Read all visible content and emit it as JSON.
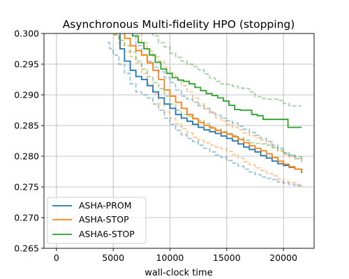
{
  "chart_data": {
    "type": "line",
    "title": "Asynchronous Multi-fidelity HPO (stopping)",
    "xlabel": "wall-clock time",
    "ylabel": "",
    "xlim": [
      -1100,
      22700
    ],
    "ylim": [
      0.265,
      0.3
    ],
    "xticks": [
      0,
      5000,
      10000,
      15000,
      20000
    ],
    "yticks": [
      0.265,
      0.27,
      0.275,
      0.28,
      0.285,
      0.29,
      0.295,
      0.3
    ],
    "xtick_labels": [
      "0",
      "5000",
      "10000",
      "15000",
      "20000"
    ],
    "ytick_labels": [
      "0.265",
      "0.270",
      "0.275",
      "0.280",
      "0.285",
      "0.290",
      "0.295",
      "0.300"
    ],
    "grid": true,
    "legend_position": "lower-left",
    "series": [
      {
        "name": "ASHA-PROM",
        "color": "#1f77b4",
        "mean": [
          [
            5200,
            0.3005
          ],
          [
            5600,
            0.2975
          ],
          [
            6000,
            0.2955
          ],
          [
            6500,
            0.294
          ],
          [
            7000,
            0.293
          ],
          [
            7500,
            0.2925
          ],
          [
            8000,
            0.2915
          ],
          [
            8500,
            0.2905
          ],
          [
            9000,
            0.2895
          ],
          [
            9500,
            0.2885
          ],
          [
            10000,
            0.2878
          ],
          [
            10500,
            0.2868
          ],
          [
            11000,
            0.2862
          ],
          [
            11500,
            0.2857
          ],
          [
            12000,
            0.2852
          ],
          [
            12500,
            0.2847
          ],
          [
            13000,
            0.2843
          ],
          [
            13500,
            0.284
          ],
          [
            14000,
            0.2837
          ],
          [
            14500,
            0.2833
          ],
          [
            15000,
            0.2829
          ],
          [
            15500,
            0.2825
          ],
          [
            16000,
            0.282
          ],
          [
            16500,
            0.2815
          ],
          [
            17000,
            0.2811
          ],
          [
            17500,
            0.2807
          ],
          [
            18000,
            0.2801
          ],
          [
            18500,
            0.2797
          ],
          [
            19000,
            0.2792
          ],
          [
            19500,
            0.2788
          ],
          [
            20000,
            0.2785
          ],
          [
            20500,
            0.2782
          ],
          [
            21000,
            0.2779
          ],
          [
            21600,
            0.2773
          ]
        ],
        "upper": [
          [
            6300,
            0.3005
          ],
          [
            7000,
            0.298
          ],
          [
            7500,
            0.2965
          ],
          [
            8000,
            0.2955
          ],
          [
            8500,
            0.2945
          ],
          [
            9000,
            0.2938
          ],
          [
            9500,
            0.2928
          ],
          [
            10000,
            0.292
          ],
          [
            10500,
            0.2908
          ],
          [
            11000,
            0.2898
          ],
          [
            11500,
            0.2893
          ],
          [
            12000,
            0.2888
          ],
          [
            12500,
            0.2882
          ],
          [
            13000,
            0.2878
          ],
          [
            13500,
            0.2872
          ],
          [
            14000,
            0.2867
          ],
          [
            14500,
            0.2862
          ],
          [
            15000,
            0.2858
          ],
          [
            15500,
            0.2854
          ],
          [
            16000,
            0.2849
          ],
          [
            16500,
            0.2844
          ],
          [
            17000,
            0.2839
          ],
          [
            17500,
            0.2834
          ],
          [
            18000,
            0.2829
          ],
          [
            18500,
            0.2824
          ],
          [
            19000,
            0.2818
          ],
          [
            19500,
            0.2813
          ],
          [
            20000,
            0.2806
          ],
          [
            20500,
            0.2801
          ],
          [
            21000,
            0.2796
          ],
          [
            21600,
            0.2788
          ]
        ],
        "lower": [
          [
            4500,
            0.2985
          ],
          [
            4700,
            0.2975
          ],
          [
            5000,
            0.2965
          ],
          [
            5500,
            0.295
          ],
          [
            6000,
            0.2935
          ],
          [
            6500,
            0.2918
          ],
          [
            7000,
            0.2905
          ],
          [
            7500,
            0.29
          ],
          [
            8000,
            0.2895
          ],
          [
            8500,
            0.2885
          ],
          [
            9000,
            0.2875
          ],
          [
            9500,
            0.2862
          ],
          [
            10000,
            0.2852
          ],
          [
            10500,
            0.2842
          ],
          [
            11000,
            0.2835
          ],
          [
            11500,
            0.2829
          ],
          [
            12000,
            0.2824
          ],
          [
            12500,
            0.2818
          ],
          [
            13000,
            0.2813
          ],
          [
            13500,
            0.2807
          ],
          [
            14000,
            0.2802
          ],
          [
            14500,
            0.2798
          ],
          [
            15000,
            0.2793
          ],
          [
            15500,
            0.2789
          ],
          [
            16000,
            0.2784
          ],
          [
            16500,
            0.2779
          ],
          [
            17000,
            0.2774
          ],
          [
            17500,
            0.277
          ],
          [
            18000,
            0.2766
          ],
          [
            18500,
            0.2764
          ],
          [
            19000,
            0.2762
          ],
          [
            19500,
            0.2758
          ],
          [
            20000,
            0.2756
          ],
          [
            20500,
            0.2754
          ],
          [
            21000,
            0.2752
          ],
          [
            21600,
            0.2751
          ]
        ]
      },
      {
        "name": "ASHA-STOP",
        "color": "#ff7f0e",
        "mean": [
          [
            5500,
            0.3005
          ],
          [
            6000,
            0.2992
          ],
          [
            6500,
            0.298
          ],
          [
            7000,
            0.2972
          ],
          [
            7500,
            0.2965
          ],
          [
            8000,
            0.2952
          ],
          [
            8500,
            0.294
          ],
          [
            9000,
            0.2925
          ],
          [
            9500,
            0.2908
          ],
          [
            10000,
            0.2898
          ],
          [
            10500,
            0.2888
          ],
          [
            11000,
            0.2878
          ],
          [
            11500,
            0.2868
          ],
          [
            12000,
            0.2861
          ],
          [
            12500,
            0.2855
          ],
          [
            13000,
            0.285
          ],
          [
            13500,
            0.2846
          ],
          [
            14000,
            0.2842
          ],
          [
            14500,
            0.2839
          ],
          [
            15000,
            0.2836
          ],
          [
            15500,
            0.2832
          ],
          [
            16000,
            0.2827
          ],
          [
            16500,
            0.2822
          ],
          [
            17000,
            0.2817
          ],
          [
            17500,
            0.2813
          ],
          [
            18000,
            0.2809
          ],
          [
            18500,
            0.2804
          ],
          [
            19000,
            0.2798
          ],
          [
            19500,
            0.2792
          ],
          [
            20000,
            0.2787
          ],
          [
            20500,
            0.2783
          ],
          [
            21000,
            0.2779
          ],
          [
            21600,
            0.2775
          ]
        ],
        "upper": [
          [
            7000,
            0.3002
          ],
          [
            7500,
            0.2985
          ],
          [
            8000,
            0.2972
          ],
          [
            8500,
            0.2962
          ],
          [
            9000,
            0.2955
          ],
          [
            9500,
            0.2945
          ],
          [
            10000,
            0.2935
          ],
          [
            10500,
            0.2925
          ],
          [
            11000,
            0.2915
          ],
          [
            11500,
            0.2905
          ],
          [
            12000,
            0.2895
          ],
          [
            12500,
            0.2885
          ],
          [
            13000,
            0.2877
          ],
          [
            13500,
            0.287
          ],
          [
            14000,
            0.2863
          ],
          [
            14500,
            0.2857
          ],
          [
            15000,
            0.2852
          ],
          [
            15500,
            0.2847
          ],
          [
            16000,
            0.2843
          ],
          [
            16500,
            0.2838
          ],
          [
            17000,
            0.2834
          ],
          [
            17500,
            0.283
          ],
          [
            18000,
            0.2826
          ],
          [
            18500,
            0.2821
          ],
          [
            19000,
            0.2815
          ],
          [
            19500,
            0.2808
          ],
          [
            20000,
            0.2803
          ],
          [
            20500,
            0.2799
          ],
          [
            21000,
            0.2796
          ],
          [
            21600,
            0.2793
          ]
        ],
        "lower": [
          [
            5000,
            0.2998
          ],
          [
            5500,
            0.2985
          ],
          [
            6000,
            0.297
          ],
          [
            6500,
            0.2962
          ],
          [
            7000,
            0.2952
          ],
          [
            7500,
            0.2935
          ],
          [
            8000,
            0.2918
          ],
          [
            8500,
            0.2902
          ],
          [
            9000,
            0.2885
          ],
          [
            9500,
            0.2872
          ],
          [
            10000,
            0.2862
          ],
          [
            10500,
            0.2853
          ],
          [
            11000,
            0.2845
          ],
          [
            11500,
            0.2838
          ],
          [
            12000,
            0.2831
          ],
          [
            12500,
            0.2826
          ],
          [
            13000,
            0.2822
          ],
          [
            13500,
            0.2818
          ],
          [
            14000,
            0.2815
          ],
          [
            14500,
            0.2812
          ],
          [
            15000,
            0.2808
          ],
          [
            15500,
            0.2803
          ],
          [
            16000,
            0.2797
          ],
          [
            16500,
            0.2791
          ],
          [
            17000,
            0.2786
          ],
          [
            17500,
            0.2781
          ],
          [
            18000,
            0.2777
          ],
          [
            18500,
            0.2772
          ],
          [
            19000,
            0.2768
          ],
          [
            19500,
            0.2763
          ],
          [
            20000,
            0.2759
          ],
          [
            20500,
            0.2757
          ],
          [
            21000,
            0.2754
          ],
          [
            21600,
            0.2751
          ]
        ]
      },
      {
        "name": "ASHA6-STOP",
        "color": "#2ca02c",
        "mean": [
          [
            6200,
            0.3004
          ],
          [
            6700,
            0.2996
          ],
          [
            7200,
            0.2985
          ],
          [
            7700,
            0.2975
          ],
          [
            8200,
            0.2965
          ],
          [
            8700,
            0.2953
          ],
          [
            9200,
            0.2942
          ],
          [
            9700,
            0.2935
          ],
          [
            10200,
            0.2928
          ],
          [
            10700,
            0.2924
          ],
          [
            11200,
            0.2922
          ],
          [
            11700,
            0.2918
          ],
          [
            12200,
            0.2912
          ],
          [
            12700,
            0.2907
          ],
          [
            13200,
            0.2902
          ],
          [
            13700,
            0.2899
          ],
          [
            14200,
            0.2895
          ],
          [
            14700,
            0.289
          ],
          [
            15200,
            0.2883
          ],
          [
            15700,
            0.2876
          ],
          [
            16200,
            0.2875
          ],
          [
            16700,
            0.2875
          ],
          [
            17200,
            0.2868
          ],
          [
            17700,
            0.2866
          ],
          [
            18200,
            0.286
          ],
          [
            18700,
            0.286
          ],
          [
            19200,
            0.286
          ],
          [
            19700,
            0.286
          ],
          [
            20100,
            0.286
          ],
          [
            20400,
            0.2847
          ],
          [
            21000,
            0.2847
          ],
          [
            21600,
            0.2847
          ]
        ],
        "upper": [
          [
            8000,
            0.3004
          ],
          [
            8500,
            0.2996
          ],
          [
            9000,
            0.2985
          ],
          [
            9500,
            0.2978
          ],
          [
            10000,
            0.2968
          ],
          [
            10500,
            0.2961
          ],
          [
            11000,
            0.2955
          ],
          [
            11500,
            0.295
          ],
          [
            12000,
            0.2946
          ],
          [
            12500,
            0.2941
          ],
          [
            13000,
            0.2934
          ],
          [
            13500,
            0.2927
          ],
          [
            14000,
            0.2922
          ],
          [
            14500,
            0.2918
          ],
          [
            15000,
            0.2917
          ],
          [
            15500,
            0.2914
          ],
          [
            16000,
            0.2911
          ],
          [
            16500,
            0.291
          ],
          [
            17000,
            0.2905
          ],
          [
            17500,
            0.2897
          ],
          [
            18000,
            0.2894
          ],
          [
            18500,
            0.2893
          ],
          [
            19000,
            0.2893
          ],
          [
            19500,
            0.2891
          ],
          [
            20000,
            0.2886
          ],
          [
            20500,
            0.2882
          ],
          [
            21000,
            0.2882
          ],
          [
            21600,
            0.2882
          ]
        ],
        "lower": [
          [
            5000,
            0.2998
          ],
          [
            5500,
            0.2989
          ],
          [
            6000,
            0.298
          ],
          [
            6500,
            0.297
          ],
          [
            7000,
            0.2955
          ],
          [
            7500,
            0.2942
          ],
          [
            8000,
            0.293
          ],
          [
            8500,
            0.292
          ],
          [
            9000,
            0.291
          ],
          [
            9500,
            0.2898
          ],
          [
            10000,
            0.2885
          ],
          [
            10500,
            0.2875
          ],
          [
            11000,
            0.2868
          ],
          [
            11500,
            0.2865
          ],
          [
            12000,
            0.2862
          ],
          [
            12500,
            0.2858
          ],
          [
            13000,
            0.2853
          ],
          [
            13500,
            0.2848
          ],
          [
            14000,
            0.2844
          ],
          [
            14500,
            0.284
          ],
          [
            15000,
            0.2837
          ],
          [
            15500,
            0.2834
          ],
          [
            16000,
            0.283
          ],
          [
            16500,
            0.2826
          ],
          [
            17000,
            0.2822
          ],
          [
            17500,
            0.2821
          ],
          [
            18000,
            0.282
          ],
          [
            18500,
            0.2818
          ],
          [
            19000,
            0.2814
          ],
          [
            19500,
            0.281
          ],
          [
            20000,
            0.2805
          ],
          [
            20500,
            0.2802
          ],
          [
            21000,
            0.2799
          ],
          [
            21600,
            0.2795
          ]
        ]
      }
    ]
  }
}
